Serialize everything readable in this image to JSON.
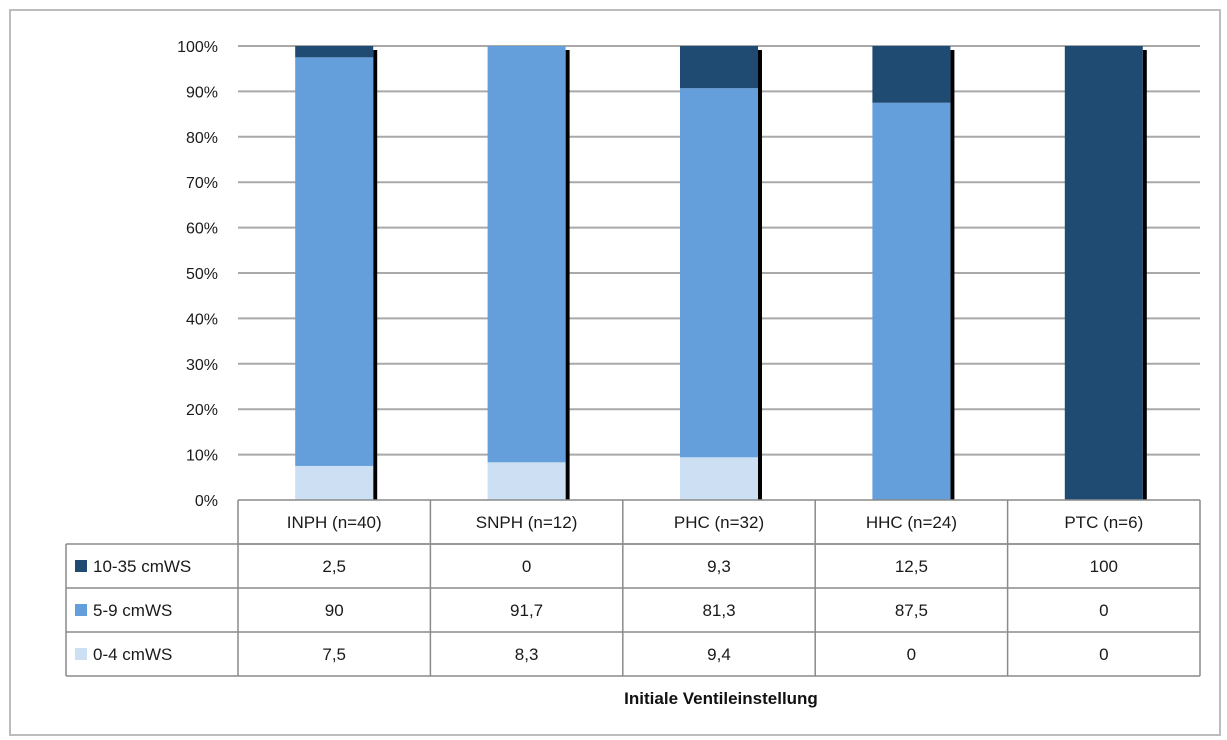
{
  "chart_data": {
    "type": "bar",
    "stacked": true,
    "percent_stacked": true,
    "categories": [
      "INPH (n=40)",
      "SNPH (n=12)",
      "PHC (n=32)",
      "HHC (n=24)",
      "PTC (n=6)"
    ],
    "series": [
      {
        "name": "10-35 cmWS",
        "color": "#1f4a72",
        "values": [
          2.5,
          0,
          9.3,
          12.5,
          100
        ],
        "labels": [
          "2,5",
          "0",
          "9,3",
          "12,5",
          "100"
        ]
      },
      {
        "name": "5-9 cmWS",
        "color": "#649fdc",
        "values": [
          90,
          91.7,
          81.3,
          87.5,
          0
        ],
        "labels": [
          "90",
          "91,7",
          "81,3",
          "87,5",
          "0"
        ]
      },
      {
        "name": "0-4 cmWS",
        "color": "#cde0f3",
        "values": [
          7.5,
          8.3,
          9.4,
          0,
          0
        ],
        "labels": [
          "7,5",
          "8,3",
          "9,4",
          "0",
          "0"
        ]
      }
    ],
    "stack_order_bottom_to_top": [
      "0-4 cmWS",
      "5-9 cmWS",
      "10-35 cmWS"
    ],
    "yticks": [
      "0%",
      "10%",
      "20%",
      "30%",
      "40%",
      "50%",
      "60%",
      "70%",
      "80%",
      "90%",
      "100%"
    ],
    "ylim": [
      0,
      100
    ],
    "xlabel": "Initiale Ventileinstellung",
    "ylabel": "",
    "title": "",
    "grid": true,
    "legend": "data-table",
    "gridline_color": "#a9a9a9"
  }
}
